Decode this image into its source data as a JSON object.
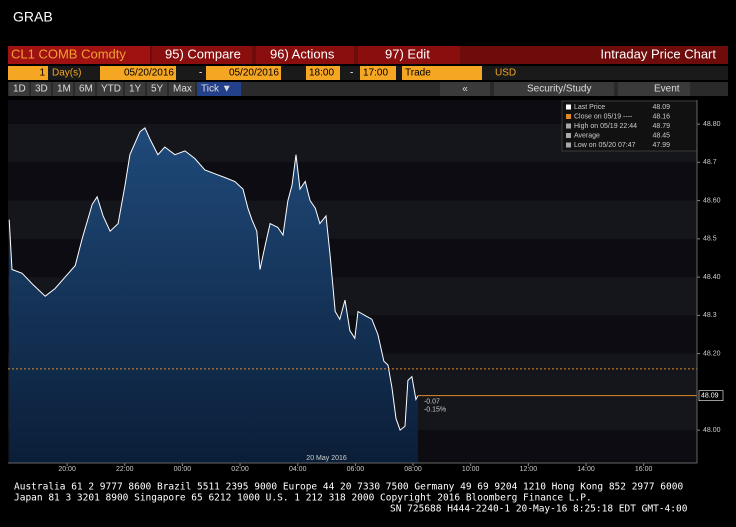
{
  "header": {
    "title": "GRAB"
  },
  "toolbar": {
    "security": "CL1 COMB Comdty",
    "compare": "95) Compare",
    "actions": "96) Actions",
    "edit": "97) Edit",
    "view": "Intraday Price Chart"
  },
  "settings": {
    "period": "1",
    "unit": "Day(s)",
    "start_date": "05/20/2016",
    "dash1": "-",
    "end_date": "05/20/2016",
    "start_time": "18:00",
    "dash2": "-",
    "end_time": "17:00",
    "field": "Trade",
    "currency": "USD"
  },
  "ranges": {
    "buttons": [
      "1D",
      "3D",
      "1M",
      "6M",
      "YTD",
      "1Y",
      "5Y",
      "Max",
      "Tick ▼"
    ],
    "back": "«",
    "study": "Security/Study",
    "event": "Event"
  },
  "chart_data": {
    "type": "area",
    "x": [
      17.99,
      18.09,
      18.44,
      18.82,
      19.24,
      19.58,
      19.93,
      20.28,
      20.52,
      20.87,
      21.04,
      21.25,
      21.49,
      21.77,
      22.01,
      22.18,
      22.53,
      22.7,
      22.88,
      23.15,
      23.39,
      23.74,
      24.09,
      24.43,
      24.78,
      25.13,
      25.48,
      25.82,
      26.1,
      26.27,
      26.41,
      26.58,
      26.69,
      26.86,
      27.04,
      27.31,
      27.49,
      27.66,
      27.8,
      27.94,
      28.08,
      28.26,
      28.43,
      28.61,
      28.77,
      28.98,
      29.12,
      29.3,
      29.46,
      29.64,
      29.81,
      29.98,
      30.09,
      30.33,
      30.57,
      30.78,
      30.99,
      31.13,
      31.27,
      31.41,
      31.55,
      31.72,
      31.82,
      31.96,
      32.1,
      32.17
    ],
    "values": [
      48.55,
      48.42,
      48.41,
      48.38,
      48.35,
      48.37,
      48.4,
      48.43,
      48.5,
      48.59,
      48.61,
      48.56,
      48.52,
      48.54,
      48.64,
      48.72,
      48.78,
      48.79,
      48.76,
      48.72,
      48.74,
      48.72,
      48.73,
      48.71,
      48.68,
      48.67,
      48.66,
      48.65,
      48.63,
      48.58,
      48.55,
      48.52,
      48.42,
      48.48,
      48.54,
      48.53,
      48.51,
      48.6,
      48.64,
      48.72,
      48.63,
      48.65,
      48.6,
      48.58,
      48.54,
      48.56,
      48.46,
      48.31,
      48.29,
      48.34,
      48.26,
      48.24,
      48.31,
      48.3,
      48.29,
      48.25,
      48.18,
      48.17,
      48.11,
      48.03,
      48.0,
      48.01,
      48.13,
      48.14,
      48.08,
      48.09
    ],
    "color": "#ffffff",
    "xlim": [
      17.95,
      41.85
    ],
    "xticks": [
      {
        "value": 20,
        "label": "20:00"
      },
      {
        "value": 22,
        "label": "22:00"
      },
      {
        "value": 24,
        "label": "00:00"
      },
      {
        "value": 26,
        "label": "02:00"
      },
      {
        "value": 28,
        "label": "04:00"
      },
      {
        "value": 30,
        "label": "06:00"
      },
      {
        "value": 32,
        "label": "08:00"
      },
      {
        "value": 34,
        "label": "10:00"
      },
      {
        "value": 36,
        "label": "12:00"
      },
      {
        "value": 38,
        "label": "14:00"
      },
      {
        "value": 40,
        "label": "16:00"
      }
    ],
    "ylim": [
      47.914,
      48.863
    ],
    "yticks": [
      {
        "value": 48,
        "label": "48.00"
      },
      {
        "value": 48.2,
        "label": "48.20"
      },
      48.3,
      {
        "value": 48.4,
        "label": "48.40"
      },
      48.5,
      {
        "value": 48.6,
        "label": "48.60"
      },
      48.7,
      {
        "value": 48.8,
        "label": "48.80"
      }
    ],
    "reference_lines": [
      {
        "value": 48.16,
        "color": "#e08a2a"
      },
      {
        "value": 48.09,
        "color": "#e08a2a"
      }
    ],
    "last_label": "48.09",
    "change": "-0.07",
    "change_pct": "-0.15%",
    "date_label": "20 May 2016",
    "legend": [
      {
        "label": "Last Price",
        "value": "48.09"
      },
      {
        "label": "Close on 05/19 ----",
        "value": "48.16"
      },
      {
        "label": "High on 05/19 22:44",
        "value": "48.79"
      },
      {
        "label": "Average",
        "value": "48.45"
      },
      {
        "label": "Low on 05/20 07:47",
        "value": "47.99"
      }
    ]
  },
  "footer": {
    "line1": "Australia 61 2 9777 8600 Brazil 5511 2395 9000 Europe 44 20 7330 7500 Germany 49 69 9204 1210 Hong Kong 852 2977 6000",
    "line2": "Japan 81 3 3201 8900      Singapore 65 6212 1000      U.S. 1 212 318 2000      Copyright 2016 Bloomberg Finance L.P.",
    "line3": "SN 725688 H444-2240-1 20-May-16  8:25:18 EDT  GMT-4:00"
  }
}
